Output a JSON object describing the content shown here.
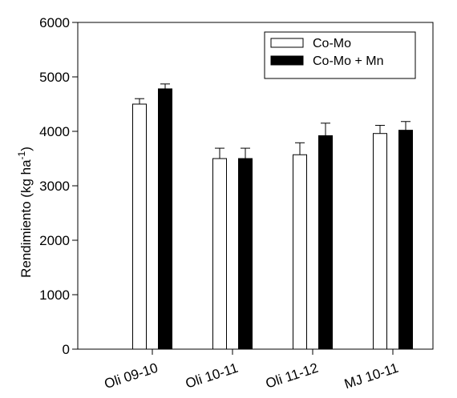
{
  "chart_data": {
    "type": "bar",
    "categories": [
      "Oli 09-10",
      "Oli 10-11",
      "Oli 11-12",
      "MJ 10-11"
    ],
    "series": [
      {
        "name": "Co-Mo",
        "values": [
          4500,
          3500,
          3570,
          3960
        ],
        "errors": [
          100,
          190,
          220,
          150
        ],
        "color": "#ffffff"
      },
      {
        "name": "Co-Mo + Mn",
        "values": [
          4780,
          3500,
          3920,
          4020
        ],
        "errors": [
          90,
          190,
          230,
          160
        ],
        "color": "#000000"
      }
    ],
    "ylabel": "Rendimiento (kg ha",
    "ylabel_superscript": "-1",
    "ylabel_close": ")",
    "xlabel": "",
    "ylim": [
      0,
      6000
    ],
    "yticks": [
      "0",
      "1000",
      "2000",
      "3000",
      "4000",
      "5000",
      "6000"
    ],
    "grid": false,
    "legend_position": "top-right"
  }
}
